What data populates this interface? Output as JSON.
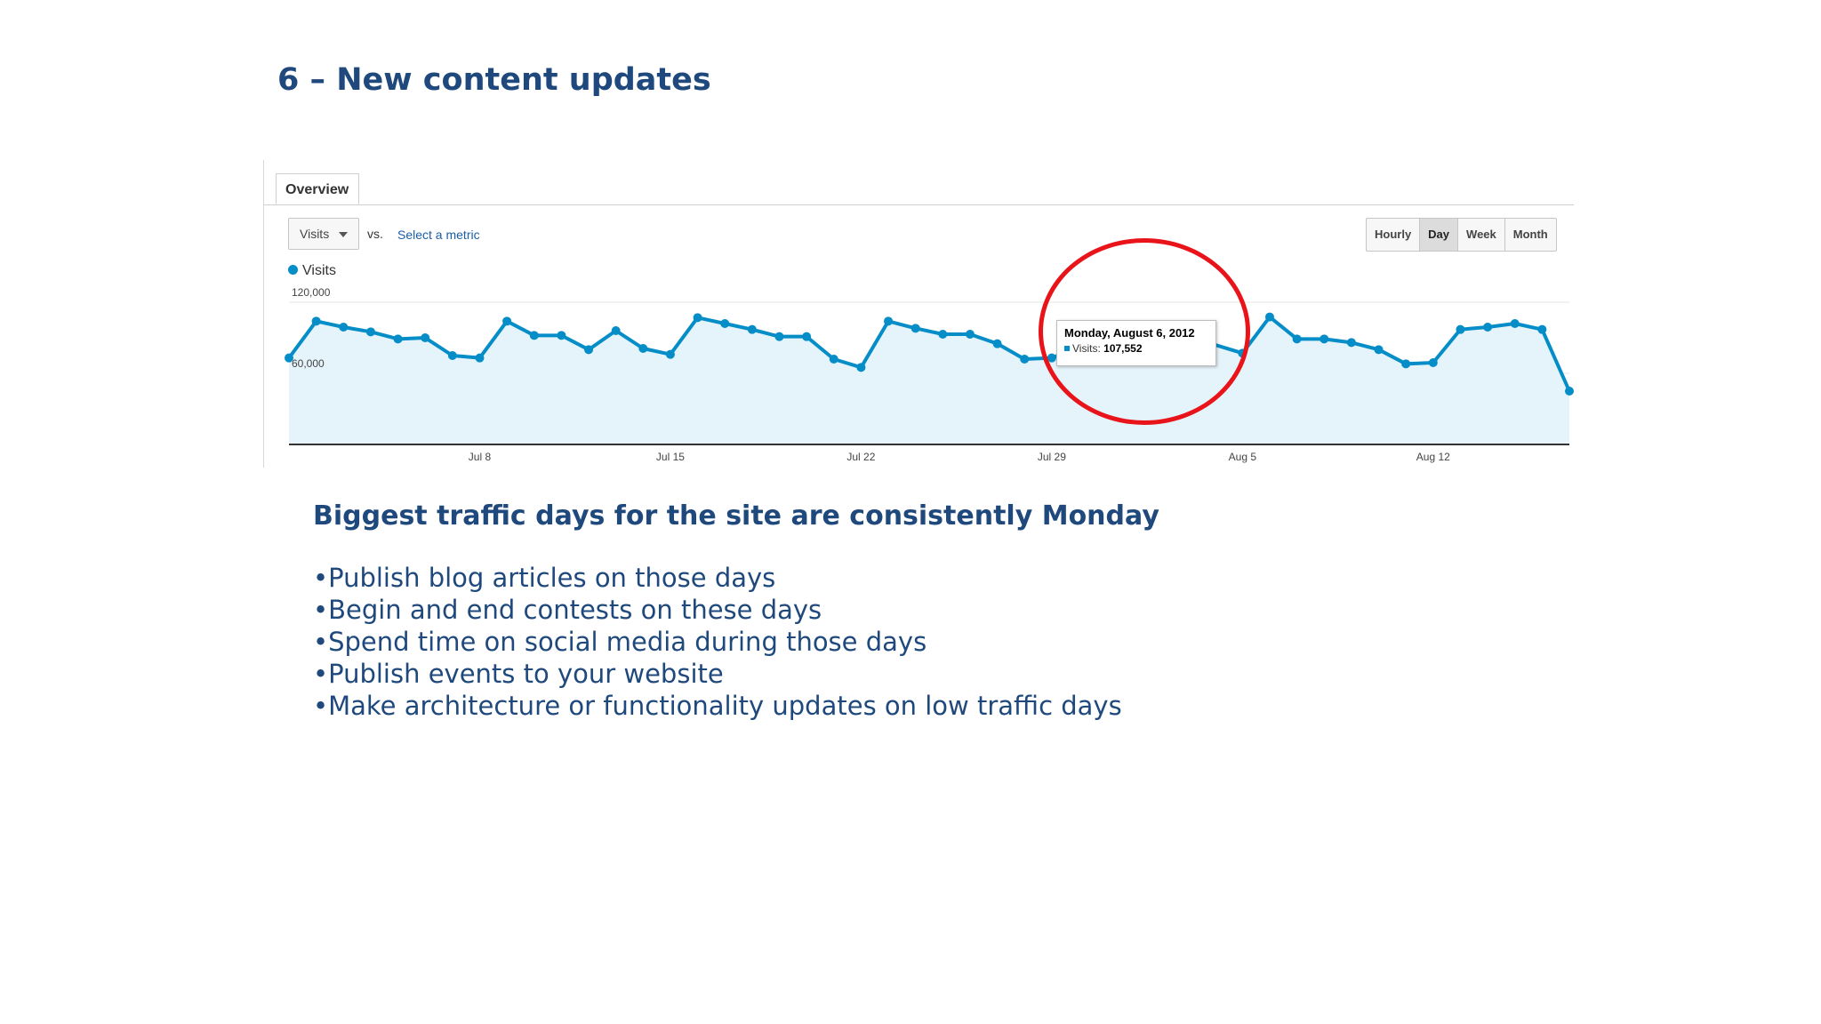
{
  "slide": {
    "title": "6 – New content updates",
    "subheading": "Biggest traffic days for the site are consistently Monday",
    "bullets": [
      "•Publish blog articles on those days",
      "•Begin and end contests on these days",
      "•Spend time on social media during those days",
      "•Publish events to your website",
      "•Make architecture or functionality updates on low traffic days"
    ]
  },
  "analytics": {
    "tab_label": "Overview",
    "metric_select": "Visits",
    "vs_label": "vs.",
    "select_metric_link": "Select a metric",
    "granularity": [
      "Hourly",
      "Day",
      "Week",
      "Month"
    ],
    "granularity_selected": "Day",
    "legend_label": "Visits",
    "colors": {
      "series": "#058dc7",
      "area_fill": "#e5f3fa",
      "highlight_ring": "#e8141a",
      "heading_text": "#1f497d"
    },
    "tooltip": {
      "date": "Monday, August 6, 2012",
      "label": "Visits:",
      "value": "107,552"
    }
  },
  "chart_data": {
    "type": "area",
    "x_tick_labels": [
      "Jul 8",
      "Jul 15",
      "Jul 22",
      "Jul 29",
      "Aug 5",
      "Aug 12"
    ],
    "y_tick_labels": [
      "120,000",
      "60,000"
    ],
    "ylim": [
      0,
      120000
    ],
    "x": [
      "Jul 1",
      "Jul 2",
      "Jul 3",
      "Jul 4",
      "Jul 5",
      "Jul 6",
      "Jul 7",
      "Jul 8",
      "Jul 9",
      "Jul 10",
      "Jul 11",
      "Jul 12",
      "Jul 13",
      "Jul 14",
      "Jul 15",
      "Jul 16",
      "Jul 17",
      "Jul 18",
      "Jul 19",
      "Jul 20",
      "Jul 21",
      "Jul 22",
      "Jul 23",
      "Jul 24",
      "Jul 25",
      "Jul 26",
      "Jul 27",
      "Jul 28",
      "Jul 29",
      "Jul 30",
      "Jul 31",
      "Aug 1",
      "Aug 2",
      "Aug 3",
      "Aug 4",
      "Aug 5",
      "Aug 6",
      "Aug 7",
      "Aug 8",
      "Aug 9",
      "Aug 10",
      "Aug 11",
      "Aug 12",
      "Aug 13",
      "Aug 14",
      "Aug 15",
      "Aug 16",
      "Aug 17",
      "Aug 18"
    ],
    "series": [
      {
        "name": "Visits",
        "values": [
          73000,
          104000,
          99000,
          95000,
          89000,
          90000,
          75000,
          73000,
          104000,
          92000,
          92000,
          80000,
          96000,
          81000,
          76000,
          107000,
          102000,
          97000,
          91000,
          91000,
          72000,
          65000,
          104000,
          98000,
          93000,
          93000,
          85000,
          72000,
          73000,
          null,
          null,
          100000,
          98000,
          null,
          null,
          77000,
          107552,
          89000,
          89000,
          86000,
          80000,
          68000,
          69000,
          97000,
          99000,
          102000,
          97000,
          45000,
          null
        ]
      }
    ],
    "grid": true,
    "legend": "top-left"
  }
}
